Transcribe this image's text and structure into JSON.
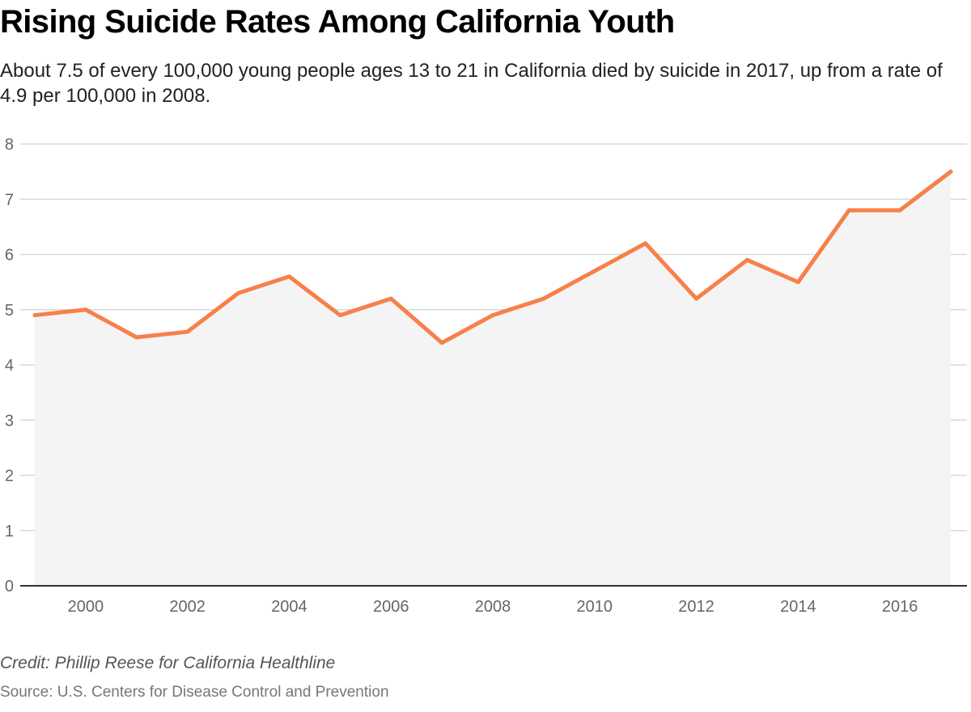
{
  "chart_data": {
    "type": "area",
    "title": "Rising Suicide Rates Among California Youth",
    "subtitle": "About 7.5 of every 100,000 young people ages 13 to 21 in California died by suicide in 2017, up from a rate of 4.9 per 100,000 in 2008.",
    "x": [
      1999,
      2000,
      2001,
      2002,
      2003,
      2004,
      2005,
      2006,
      2007,
      2008,
      2009,
      2010,
      2011,
      2012,
      2013,
      2014,
      2015,
      2016,
      2017
    ],
    "series": [
      {
        "values": [
          4.9,
          5.0,
          4.5,
          4.6,
          5.3,
          5.6,
          4.9,
          5.2,
          4.4,
          4.9,
          5.2,
          5.7,
          6.2,
          5.2,
          5.9,
          5.5,
          6.8,
          6.8,
          7.5
        ]
      }
    ],
    "xlabel": "",
    "ylabel": "",
    "xlim": [
      1999,
      2017
    ],
    "ylim": [
      0,
      8
    ],
    "x_ticks": [
      "2000",
      "2002",
      "2004",
      "2006",
      "2008",
      "2010",
      "2012",
      "2014",
      "2016"
    ],
    "y_ticks": [
      "0",
      "1",
      "2",
      "3",
      "4",
      "5",
      "6",
      "7",
      "8"
    ],
    "grid": true,
    "legend": "none",
    "colors": {
      "line": "#f7804a",
      "area": "#f4f4f4",
      "grid": "#d9d9d9",
      "baseline": "#333333"
    }
  },
  "credit": "Credit: Phillip Reese for California Healthline",
  "source": "Source: U.S. Centers for Disease Control and Prevention"
}
